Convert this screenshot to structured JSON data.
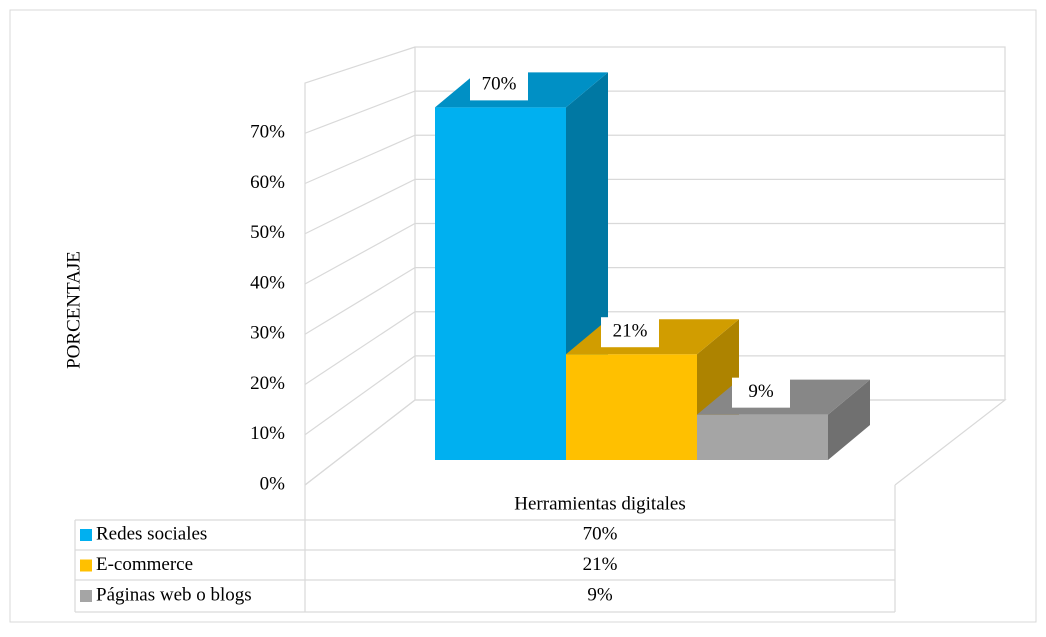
{
  "chart_data": {
    "type": "bar3d",
    "y_axis_label": "PORCENTAJE",
    "categories": [
      "Herramientas digitales"
    ],
    "series": [
      {
        "name": "Redes sociales",
        "color": "#00b0f0",
        "values": [
          70
        ],
        "value_labels": [
          "70%"
        ]
      },
      {
        "name": "E-commerce",
        "color": "#ffc000",
        "values": [
          21
        ],
        "value_labels": [
          "21%"
        ]
      },
      {
        "name": "Páginas web o blogs",
        "color": "#a5a5a5",
        "values": [
          9
        ],
        "value_labels": [
          "9%"
        ]
      }
    ],
    "ylim": [
      0,
      80
    ],
    "yticks": [
      {
        "value": 0,
        "label": "0%"
      },
      {
        "value": 10,
        "label": "10%"
      },
      {
        "value": 20,
        "label": "20%"
      },
      {
        "value": 30,
        "label": "30%"
      },
      {
        "value": 40,
        "label": "40%"
      },
      {
        "value": 50,
        "label": "50%"
      },
      {
        "value": 60,
        "label": "60%"
      },
      {
        "value": 70,
        "label": "70%"
      }
    ],
    "grid": true
  }
}
